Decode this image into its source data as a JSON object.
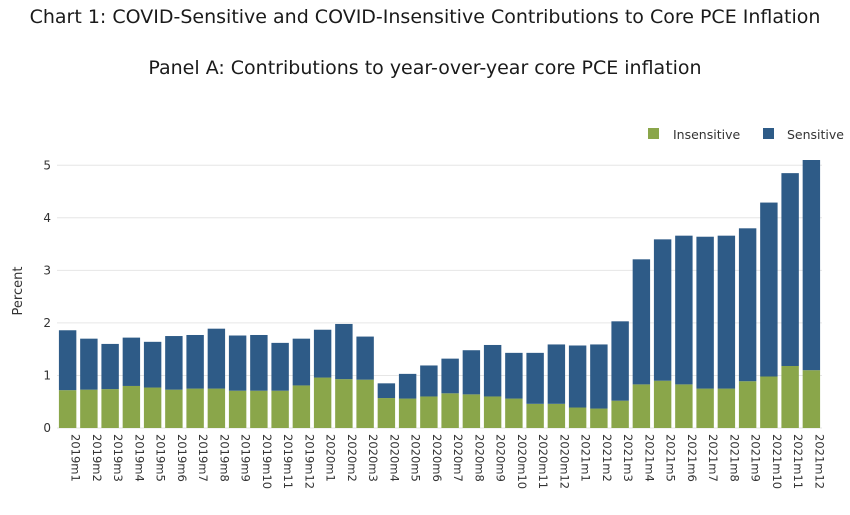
{
  "title": "Chart 1: COVID-Sensitive and COVID-Insensitive Contributions to Core PCE Inflation",
  "subtitle": "Panel A: Contributions to year-over-year core PCE inflation",
  "colors": {
    "insensitive": "#8aa64a",
    "sensitive": "#2e5b87",
    "grid": "#e6e6e6"
  },
  "chart_data": {
    "type": "bar",
    "stacked": true,
    "categories": [
      "2019m1",
      "2019m2",
      "2019m3",
      "2019m4",
      "2019m5",
      "2019m6",
      "2019m7",
      "2019m8",
      "2019m9",
      "2019m10",
      "2019m11",
      "2019m12",
      "2020m1",
      "2020m2",
      "2020m3",
      "2020m4",
      "2020m5",
      "2020m6",
      "2020m7",
      "2020m8",
      "2020m9",
      "2020m10",
      "2020m11",
      "2020m12",
      "2021m1",
      "2021m2",
      "2021m3",
      "2021m4",
      "2021m5",
      "2021m6",
      "2021m7",
      "2021m8",
      "2021m9",
      "2021m10",
      "2021m11",
      "2021m12"
    ],
    "series": [
      {
        "name": "Insensitive",
        "values": [
          0.72,
          0.73,
          0.74,
          0.8,
          0.77,
          0.73,
          0.75,
          0.75,
          0.71,
          0.71,
          0.71,
          0.81,
          0.96,
          0.93,
          0.92,
          0.57,
          0.56,
          0.6,
          0.66,
          0.64,
          0.6,
          0.56,
          0.46,
          0.46,
          0.39,
          0.37,
          0.52,
          0.83,
          0.9,
          0.83,
          0.75,
          0.75,
          0.89,
          0.98,
          1.18,
          1.1
        ]
      },
      {
        "name": "Sensitive",
        "values": [
          1.14,
          0.97,
          0.86,
          0.92,
          0.87,
          1.02,
          1.02,
          1.14,
          1.05,
          1.06,
          0.91,
          0.89,
          0.91,
          1.05,
          0.82,
          0.28,
          0.47,
          0.59,
          0.66,
          0.84,
          0.98,
          0.87,
          0.97,
          1.13,
          1.18,
          1.22,
          1.51,
          2.38,
          2.69,
          2.83,
          2.89,
          2.91,
          2.91,
          3.31,
          3.67,
          4.0
        ]
      }
    ],
    "ylabel": "Percent",
    "yticks": [
      0,
      1,
      2,
      3,
      4,
      5
    ],
    "ylim": [
      0,
      5.1
    ],
    "grid": true,
    "legend_position": "top-right"
  }
}
